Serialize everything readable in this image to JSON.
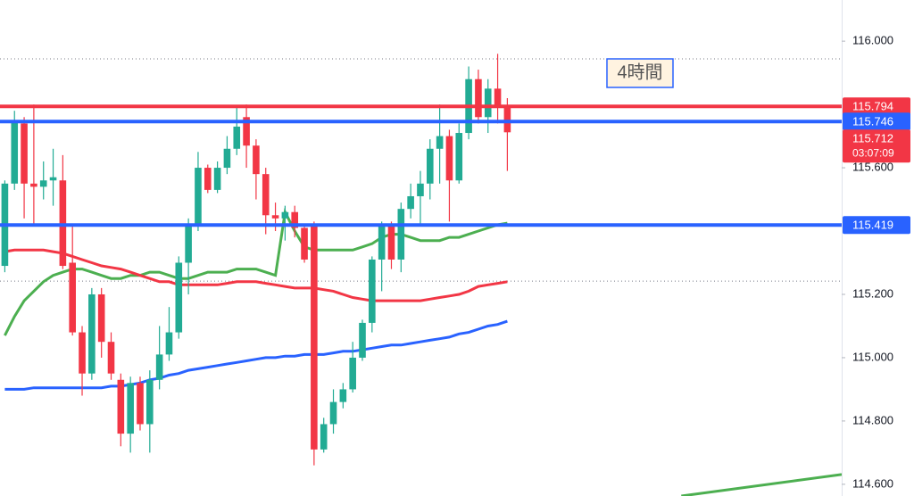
{
  "chart_data": {
    "type": "candlestick",
    "open": [
      115.29,
      115.55,
      115.74,
      115.55,
      115.54,
      115.56,
      115.56,
      115.3,
      115.08,
      114.95,
      115.2,
      115.05,
      114.93,
      114.76,
      114.92,
      114.79,
      114.93,
      115.01,
      115.08,
      115.3,
      115.42,
      115.6,
      115.53,
      115.6,
      115.66,
      115.76,
      115.67,
      115.58,
      115.45,
      115.44,
      115.46,
      115.41,
      115.42,
      114.71,
      114.79,
      114.86,
      114.9,
      115.0,
      115.11,
      115.31,
      115.42,
      115.31,
      115.47,
      115.51,
      115.55,
      115.66,
      115.7,
      115.56,
      115.71,
      115.88,
      115.76,
      115.85,
      115.79
    ],
    "high": [
      115.56,
      115.78,
      115.76,
      115.8,
      115.62,
      115.66,
      115.64,
      115.42,
      115.1,
      115.22,
      115.22,
      115.08,
      114.95,
      114.94,
      114.94,
      114.96,
      115.1,
      115.16,
      115.32,
      115.44,
      115.65,
      115.61,
      115.62,
      115.7,
      115.79,
      115.8,
      115.69,
      115.6,
      115.49,
      115.48,
      115.48,
      115.42,
      115.43,
      114.81,
      114.9,
      114.92,
      115.05,
      115.12,
      115.32,
      115.43,
      115.43,
      115.49,
      115.55,
      115.59,
      115.69,
      115.8,
      115.72,
      115.74,
      115.92,
      115.91,
      115.88,
      115.96,
      115.82
    ],
    "low": [
      115.27,
      115.53,
      115.44,
      115.42,
      115.5,
      115.48,
      115.28,
      115.07,
      114.88,
      114.93,
      115.0,
      114.93,
      114.72,
      114.7,
      114.77,
      114.7,
      114.9,
      114.99,
      115.06,
      115.2,
      115.4,
      115.52,
      115.52,
      115.58,
      115.64,
      115.6,
      115.5,
      115.39,
      115.4,
      115.37,
      115.38,
      115.3,
      114.66,
      114.7,
      114.76,
      114.84,
      114.89,
      114.99,
      115.08,
      115.21,
      115.28,
      115.27,
      115.44,
      115.42,
      115.5,
      115.55,
      115.43,
      115.55,
      115.69,
      115.74,
      115.71,
      115.74,
      115.59
    ],
    "close": [
      115.55,
      115.75,
      115.55,
      115.54,
      115.56,
      115.57,
      115.29,
      115.08,
      114.95,
      115.2,
      115.05,
      114.95,
      114.76,
      114.92,
      114.79,
      114.93,
      115.01,
      115.08,
      115.3,
      115.42,
      115.6,
      115.53,
      115.6,
      115.66,
      115.73,
      115.67,
      115.58,
      115.45,
      115.44,
      115.46,
      115.41,
      115.31,
      114.71,
      114.79,
      114.86,
      114.9,
      115.0,
      115.11,
      115.31,
      115.42,
      115.31,
      115.47,
      115.51,
      115.55,
      115.66,
      115.7,
      115.56,
      115.71,
      115.88,
      115.76,
      115.85,
      115.79,
      115.712
    ],
    "up_color": "#22ab94",
    "down_color": "#f23645",
    "series": [
      {
        "color": "#4caf50",
        "values": [
          115.07,
          115.13,
          115.18,
          115.21,
          115.24,
          115.26,
          115.27,
          115.28,
          115.28,
          115.27,
          115.26,
          115.25,
          115.25,
          115.26,
          115.26,
          115.27,
          115.27,
          115.26,
          115.25,
          115.25,
          115.26,
          115.27,
          115.27,
          115.27,
          115.28,
          115.28,
          115.28,
          115.27,
          115.26,
          115.46,
          115.4,
          115.35,
          115.34,
          115.34,
          115.34,
          115.34,
          115.34,
          115.35,
          115.36,
          115.38,
          115.39,
          115.39,
          115.38,
          115.37,
          115.37,
          115.37,
          115.38,
          115.38,
          115.39,
          115.4,
          115.41,
          115.42,
          115.425
        ]
      },
      {
        "color": "#f23645",
        "values": [
          115.335,
          115.34,
          115.34,
          115.34,
          115.34,
          115.335,
          115.33,
          115.32,
          115.31,
          115.3,
          115.29,
          115.285,
          115.28,
          115.27,
          115.26,
          115.25,
          115.24,
          115.24,
          115.23,
          115.23,
          115.23,
          115.23,
          115.23,
          115.235,
          115.24,
          115.24,
          115.24,
          115.235,
          115.23,
          115.225,
          115.22,
          115.22,
          115.22,
          115.215,
          115.21,
          115.2,
          115.19,
          115.185,
          115.18,
          115.18,
          115.18,
          115.18,
          115.18,
          115.18,
          115.185,
          115.19,
          115.195,
          115.2,
          115.21,
          115.225,
          115.23,
          115.235,
          115.24
        ]
      },
      {
        "color": "#2962ff",
        "values": [
          114.9,
          114.9,
          114.9,
          114.905,
          114.905,
          114.905,
          114.905,
          114.905,
          114.905,
          114.905,
          114.905,
          114.91,
          114.91,
          114.915,
          114.92,
          114.93,
          114.935,
          114.945,
          114.95,
          114.96,
          114.965,
          114.97,
          114.975,
          114.98,
          114.985,
          114.99,
          114.995,
          115.0,
          115.0,
          115.005,
          115.005,
          115.01,
          115.01,
          115.01,
          115.015,
          115.02,
          115.02,
          115.025,
          115.03,
          115.035,
          115.04,
          115.04,
          115.045,
          115.05,
          115.055,
          115.06,
          115.065,
          115.075,
          115.08,
          115.09,
          115.1,
          115.105,
          115.115
        ]
      },
      {
        "color": "#4caf50",
        "x": [
          70,
          86.6
        ],
        "values": [
          114.563,
          114.631
        ]
      }
    ],
    "lines": [
      {
        "value": 115.794,
        "color": "#f23645"
      },
      {
        "value": 115.746,
        "color": "#2962ff"
      },
      {
        "value": 115.419,
        "color": "#2962ff"
      }
    ],
    "dotted_lines": [
      115.944,
      115.242
    ],
    "current_price": {
      "value": 115.712,
      "countdown": "03:07:09",
      "color": "#f23645"
    },
    "annotation": "4時間",
    "xlim": [
      -0.5,
      86.6
    ],
    "ylim": [
      114.563,
      116.13
    ],
    "yticks": [
      {
        "value": 116,
        "label": "116.000"
      },
      {
        "value": 115.6,
        "label": "115.600"
      },
      {
        "value": 115.2,
        "label": "115.200"
      },
      {
        "value": 115,
        "label": "115.000"
      },
      {
        "value": 114.8,
        "label": "114.800"
      },
      {
        "value": 114.6,
        "label": "114.600"
      }
    ]
  }
}
